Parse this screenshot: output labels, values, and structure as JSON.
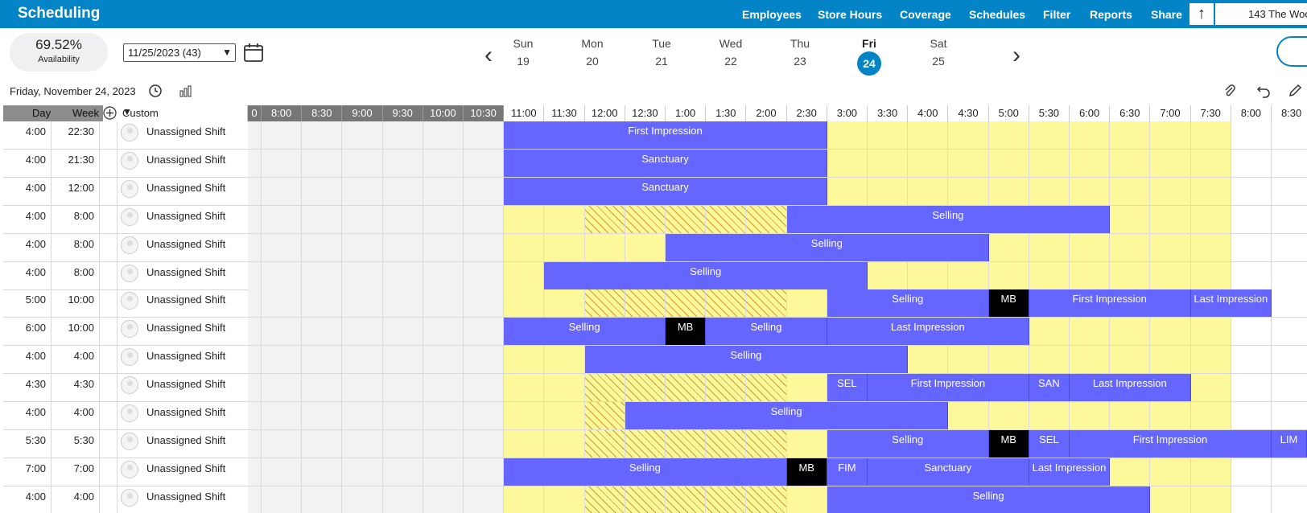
{
  "app": {
    "title": "Scheduling"
  },
  "nav": [
    "Employees",
    "Store Hours",
    "Coverage",
    "Schedules",
    "Filter",
    "Reports",
    "Share"
  ],
  "store": "143 The Woo",
  "availability": {
    "value": "69.52%",
    "label": "Availability"
  },
  "week_select": "11/25/2023 (43)",
  "days": [
    {
      "name": "Sun",
      "num": "19"
    },
    {
      "name": "Mon",
      "num": "20"
    },
    {
      "name": "Tue",
      "num": "21"
    },
    {
      "name": "Wed",
      "num": "22"
    },
    {
      "name": "Thu",
      "num": "23"
    },
    {
      "name": "Fri",
      "num": "24",
      "selected": true
    },
    {
      "name": "Sat",
      "num": "25"
    }
  ],
  "date_label": "Friday, November 24, 2023",
  "columns": {
    "day": "Day",
    "week": "Week",
    "custom": "Custom"
  },
  "times": [
    "0",
    "8:00",
    "8:30",
    "9:00",
    "9:30",
    "10:00",
    "10:30",
    "11:00",
    "11:30",
    "12:00",
    "12:30",
    "1:00",
    "1:30",
    "2:00",
    "2:30",
    "3:00",
    "3:30",
    "4:00",
    "4:30",
    "5:00",
    "5:30",
    "6:00",
    "6:30",
    "7:00",
    "7:30",
    "8:00",
    "8:30"
  ],
  "colors": {
    "brand": "#0284c7",
    "shift": "#6565ff",
    "open": "#fdf89a",
    "break": "#000000"
  },
  "rows": [
    {
      "day": "4:00",
      "week": "22:30",
      "name": "Unassigned Shift",
      "shifts": [
        {
          "s": 7,
          "e": 15,
          "label": "First Impression"
        }
      ]
    },
    {
      "day": "4:00",
      "week": "21:30",
      "name": "Unassigned Shift",
      "shifts": [
        {
          "s": 7,
          "e": 15,
          "label": "Sanctuary"
        }
      ]
    },
    {
      "day": "4:00",
      "week": "12:00",
      "name": "Unassigned Shift",
      "shifts": [
        {
          "s": 7,
          "e": 15,
          "label": "Sanctuary"
        }
      ]
    },
    {
      "day": "4:00",
      "week": "8:00",
      "name": "Unassigned Shift",
      "shifts": [
        {
          "s": 14,
          "e": 22,
          "label": "Selling"
        }
      ]
    },
    {
      "day": "4:00",
      "week": "8:00",
      "name": "Unassigned Shift",
      "shifts": [
        {
          "s": 11,
          "e": 19,
          "label": "Selling"
        }
      ]
    },
    {
      "day": "4:00",
      "week": "8:00",
      "name": "Unassigned Shift",
      "shifts": [
        {
          "s": 8,
          "e": 16,
          "label": "Selling"
        }
      ]
    },
    {
      "day": "5:00",
      "week": "10:00",
      "name": "Unassigned Shift",
      "shifts": [
        {
          "s": 15,
          "e": 19,
          "label": "Selling"
        },
        {
          "s": 19,
          "e": 20,
          "label": "MB",
          "black": true
        },
        {
          "s": 20,
          "e": 24,
          "label": "First Impression"
        },
        {
          "s": 24,
          "e": 26,
          "label": "Last Impression"
        }
      ]
    },
    {
      "day": "6:00",
      "week": "10:00",
      "name": "Unassigned Shift",
      "shifts": [
        {
          "s": 7,
          "e": 11,
          "label": "Selling"
        },
        {
          "s": 11,
          "e": 12,
          "label": "MB",
          "black": true
        },
        {
          "s": 12,
          "e": 15,
          "label": "Selling"
        },
        {
          "s": 15,
          "e": 20,
          "label": "Last Impression"
        }
      ]
    },
    {
      "day": "4:00",
      "week": "4:00",
      "name": "Unassigned Shift",
      "shifts": [
        {
          "s": 9,
          "e": 17,
          "label": "Selling"
        }
      ]
    },
    {
      "day": "4:30",
      "week": "4:30",
      "name": "Unassigned Shift",
      "shifts": [
        {
          "s": 15,
          "e": 16,
          "label": "SEL"
        },
        {
          "s": 16,
          "e": 20,
          "label": "First Impression"
        },
        {
          "s": 20,
          "e": 21,
          "label": "SAN"
        },
        {
          "s": 21,
          "e": 24,
          "label": "Last Impression"
        }
      ]
    },
    {
      "day": "4:00",
      "week": "4:00",
      "name": "Unassigned Shift",
      "shifts": [
        {
          "s": 10,
          "e": 18,
          "label": "Selling"
        }
      ]
    },
    {
      "day": "5:30",
      "week": "5:30",
      "name": "Unassigned Shift",
      "shifts": [
        {
          "s": 15,
          "e": 19,
          "label": "Selling"
        },
        {
          "s": 19,
          "e": 20,
          "label": "MB",
          "black": true
        },
        {
          "s": 20,
          "e": 21,
          "label": "SEL"
        },
        {
          "s": 21,
          "e": 26,
          "label": "First Impression"
        },
        {
          "s": 26,
          "e": 27,
          "label": "LIM"
        }
      ]
    },
    {
      "day": "7:00",
      "week": "7:00",
      "name": "Unassigned Shift",
      "shifts": [
        {
          "s": 7,
          "e": 14,
          "label": "Selling"
        },
        {
          "s": 14,
          "e": 15,
          "label": "MB",
          "black": true
        },
        {
          "s": 15,
          "e": 16,
          "label": "FIM"
        },
        {
          "s": 16,
          "e": 20,
          "label": "Sanctuary"
        },
        {
          "s": 20,
          "e": 22,
          "label": "Last Impression"
        }
      ]
    },
    {
      "day": "4:00",
      "week": "4:00",
      "name": "Unassigned Shift",
      "shifts": [
        {
          "s": 15,
          "e": 23,
          "label": "Selling"
        }
      ]
    }
  ]
}
